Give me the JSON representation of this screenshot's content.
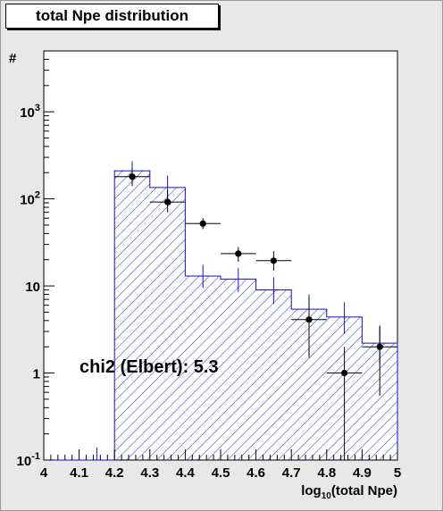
{
  "chart_data": {
    "type": "histogram",
    "title": "total Npe distribution",
    "xlabel": "log10(total Npe)",
    "ylabel": "#",
    "xlim": [
      4,
      5
    ],
    "ylim": [
      0.1,
      5000
    ],
    "y_scale": "log",
    "grid": false,
    "x_tick_labels": [
      "4",
      "4.1",
      "4.2",
      "4.3",
      "4.4",
      "4.5",
      "4.6",
      "4.7",
      "4.8",
      "4.9",
      "5"
    ],
    "y_tick_labels": [
      {
        "value": 0.1,
        "base": "10",
        "exp": "-1"
      },
      {
        "value": 1,
        "base": "1",
        "exp": ""
      },
      {
        "value": 10,
        "base": "10",
        "exp": ""
      },
      {
        "value": 100,
        "base": "10",
        "exp": "2"
      },
      {
        "value": 1000,
        "base": "10",
        "exp": "3"
      }
    ],
    "bin_edges": [
      4.0,
      4.1,
      4.2,
      4.3,
      4.4,
      4.5,
      4.6,
      4.7,
      4.8,
      4.9,
      5.0
    ],
    "series": [
      {
        "kind": "simulation-histogram",
        "color": "#1010d0",
        "fill": "hatched",
        "values": [
          0.1,
          0.1,
          210,
          135,
          13,
          12,
          9,
          5.4,
          4.4,
          2.2
        ],
        "err_up": [
          0,
          0.14,
          270,
          185,
          17.5,
          16,
          12.5,
          8.0,
          6.5,
          3.4
        ],
        "err_down": [
          0,
          0.1,
          160,
          95,
          9.5,
          8.5,
          6.2,
          3.6,
          2.8,
          1.3
        ]
      },
      {
        "kind": "data-points",
        "color": "#000000",
        "x": [
          4.25,
          4.35,
          4.45,
          4.55,
          4.65,
          4.75,
          4.85,
          4.95
        ],
        "y": [
          180,
          92,
          52,
          23.5,
          19.5,
          4.1,
          1.0,
          2.0
        ],
        "y_err_up": [
          230,
          125,
          60,
          28,
          25,
          7.5,
          2.0,
          3.5
        ],
        "y_err_down": [
          140,
          70,
          45,
          19,
          15,
          1.5,
          0.1,
          0.55
        ],
        "x_err": 0.05
      }
    ],
    "annotations": [
      "chi2 (Elbert): 5.3"
    ],
    "colors": {
      "histogram": "#1010d0",
      "data": "#000000",
      "frame": "#000000",
      "background": "#e8e8e8",
      "plot_area": "#ffffff"
    }
  }
}
